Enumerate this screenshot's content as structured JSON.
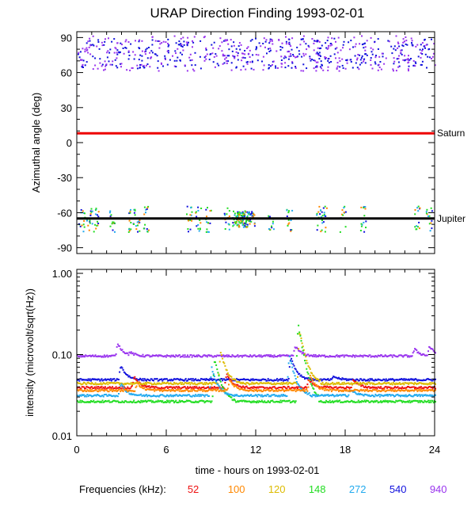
{
  "chart_data": [
    {
      "type": "scatter",
      "title": "URAP Direction Finding  1993-02-01",
      "xlabel": "",
      "ylabel": "Azimuthal angle (deg)",
      "xlim": [
        0,
        24
      ],
      "ylim": [
        -95,
        95
      ],
      "yticks": [
        -90,
        -60,
        -30,
        0,
        30,
        60,
        90
      ],
      "ytick_labels": [
        "-90",
        "-60",
        "-30",
        "0",
        "30",
        "60",
        "90"
      ],
      "reference_lines": [
        {
          "name": "Saturn",
          "y": 8,
          "color": "#ee0000"
        },
        {
          "name": "Jupiter",
          "y": -65,
          "color": "#000000"
        }
      ],
      "series": [
        {
          "name": "940",
          "color": "#9933ee",
          "description": "band",
          "y_range": [
            62,
            92
          ]
        },
        {
          "name": "540",
          "color": "#1111dd",
          "description": "band",
          "y_range": [
            64,
            90
          ]
        },
        {
          "name": "148",
          "color": "#22dd22",
          "description": "clusters near Jupiter",
          "y_center": -65
        },
        {
          "name": "272",
          "color": "#22aaee",
          "description": "clusters near Jupiter",
          "y_center": -67
        },
        {
          "name": "100",
          "color": "#ff8800",
          "description": "clusters near Jupiter",
          "y_center": -63
        }
      ]
    },
    {
      "type": "line",
      "ylabel": "intensity (microvolt/sqrt(Hz))",
      "xlabel": "time - hours on 1993-02-01",
      "yscale": "log",
      "xlim": [
        0,
        24
      ],
      "ylim": [
        0.01,
        1.0
      ],
      "xticks": [
        0,
        6,
        12,
        18,
        24
      ],
      "xtick_labels": [
        "0",
        "6",
        "12",
        "18",
        "24"
      ],
      "yticks": [
        0.01,
        0.1,
        1.0
      ],
      "ytick_labels": [
        "0.01",
        "0.10",
        "1.00"
      ],
      "series": [
        {
          "name": "940",
          "color": "#9933ee",
          "baseline": 0.098,
          "peaks": [
            [
              2.7,
              0.14
            ],
            [
              3.5,
              0.11
            ],
            [
              14.6,
              0.13
            ],
            [
              22.6,
              0.12
            ],
            [
              23.6,
              0.13
            ]
          ]
        },
        {
          "name": "540",
          "color": "#1111dd",
          "baseline": 0.05,
          "peaks": [
            [
              2.9,
              0.075
            ],
            [
              14.3,
              0.095
            ],
            [
              17.2,
              0.055
            ]
          ]
        },
        {
          "name": "52",
          "color": "#ee1111",
          "baseline": 0.04,
          "peaks": [
            [
              3.8,
              0.055
            ],
            [
              10.0,
              0.06
            ],
            [
              15.5,
              0.05
            ],
            [
              18.5,
              0.05
            ]
          ]
        },
        {
          "name": "120",
          "color": "#ddbb00",
          "baseline": 0.045,
          "peaks": [
            [
              9.6,
              0.11
            ],
            [
              14.9,
              0.2
            ]
          ]
        },
        {
          "name": "148",
          "color": "#22dd22",
          "baseline": 0.027,
          "peaks": [
            [
              9.2,
              0.09
            ],
            [
              14.8,
              0.24
            ]
          ]
        },
        {
          "name": "272",
          "color": "#22aaee",
          "baseline": 0.032,
          "peaks": [
            [
              2.9,
              0.045
            ],
            [
              9.0,
              0.07
            ],
            [
              14.2,
              0.1
            ],
            [
              18.3,
              0.038
            ]
          ]
        },
        {
          "name": "100",
          "color": "#ff8800",
          "baseline": 0.037,
          "peaks": [
            [
              4.0,
              0.045
            ],
            [
              10.2,
              0.05
            ],
            [
              15.6,
              0.055
            ]
          ]
        }
      ]
    }
  ],
  "legend": {
    "label": "Frequencies (kHz):",
    "items": [
      {
        "value": "52",
        "color": "#ee1111"
      },
      {
        "value": "100",
        "color": "#ff8800"
      },
      {
        "value": "120",
        "color": "#ddbb00"
      },
      {
        "value": "148",
        "color": "#22dd22"
      },
      {
        "value": "272",
        "color": "#22aaee"
      },
      {
        "value": "540",
        "color": "#1111dd"
      },
      {
        "value": "940",
        "color": "#9933ee"
      }
    ]
  }
}
